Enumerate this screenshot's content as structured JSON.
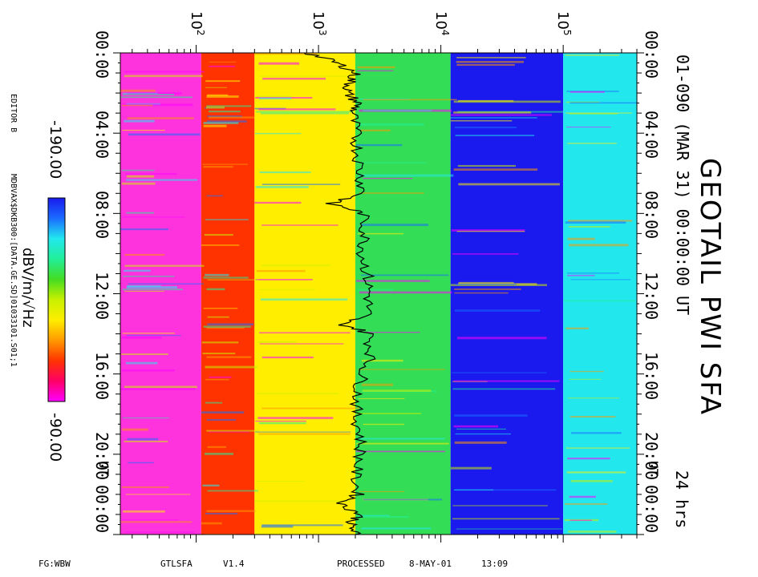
{
  "title": "GEOTAIL PWI SFA",
  "subtitle": "01-090 (MAR 31) 00:00:00 UT",
  "duration": "24 hrs",
  "colorbar": {
    "label": "dBV/m/√Hz",
    "min_label": "-190.00",
    "max_label": "-90.00",
    "colors": [
      "#ff00ff",
      "#ff0066",
      "#ff3300",
      "#ff9900",
      "#ffee00",
      "#c8f000",
      "#44dd22",
      "#22ee99",
      "#22e8ee",
      "#1a6cff",
      "#1a1aee"
    ]
  },
  "side_labels": {
    "editor": "EDITOR B",
    "data_file": "MDBVAX$DKB300:[DATA.GE.SD]01033101.S01;1"
  },
  "footer": {
    "fg": "FG:WBW",
    "program": "GTLSFA",
    "version": "V1.4",
    "processed": "PROCESSED",
    "date": "8-MAY-01",
    "clock": "13:09"
  },
  "chart_data": {
    "type": "heatmap",
    "description_axis_freq": "frequency, log scale",
    "freq_range_hz": [
      24,
      400000
    ],
    "freq_ticks": [
      {
        "base": "10",
        "exp": "2",
        "value": 100
      },
      {
        "base": "10",
        "exp": "3",
        "value": 1000
      },
      {
        "base": "10",
        "exp": "4",
        "value": 10000
      },
      {
        "base": "10",
        "exp": "5",
        "value": 100000
      }
    ],
    "time_range_hours": [
      0,
      24
    ],
    "time_ticks": [
      "00:00",
      "04:00",
      "08:00",
      "12:00",
      "16:00",
      "20:00",
      "00:00"
    ],
    "time_tick_hours": [
      0,
      4,
      8,
      12,
      16,
      20,
      24
    ],
    "ut_marker": "UT",
    "trace_color": "#000000",
    "trace_freq_hz_by_hour": [
      {
        "t": 0.0,
        "f": 800
      },
      {
        "t": 0.5,
        "f": 1400
      },
      {
        "t": 1.0,
        "f": 2000
      },
      {
        "t": 1.5,
        "f": 1800
      },
      {
        "t": 2.0,
        "f": 1700
      },
      {
        "t": 2.5,
        "f": 2100
      },
      {
        "t": 3.0,
        "f": 1900
      },
      {
        "t": 4.0,
        "f": 2000
      },
      {
        "t": 5.0,
        "f": 2100
      },
      {
        "t": 6.0,
        "f": 2200
      },
      {
        "t": 7.0,
        "f": 2300
      },
      {
        "t": 7.5,
        "f": 1200
      },
      {
        "t": 8.0,
        "f": 2300
      },
      {
        "t": 9.0,
        "f": 2400
      },
      {
        "t": 10.0,
        "f": 2300
      },
      {
        "t": 11.0,
        "f": 2500
      },
      {
        "t": 12.0,
        "f": 2600
      },
      {
        "t": 13.0,
        "f": 2500
      },
      {
        "t": 13.5,
        "f": 1500
      },
      {
        "t": 14.0,
        "f": 2600
      },
      {
        "t": 15.0,
        "f": 2700
      },
      {
        "t": 16.0,
        "f": 2300
      },
      {
        "t": 17.0,
        "f": 2100
      },
      {
        "t": 18.0,
        "f": 2000
      },
      {
        "t": 19.0,
        "f": 2200
      },
      {
        "t": 20.0,
        "f": 2200
      },
      {
        "t": 21.0,
        "f": 2000
      },
      {
        "t": 22.0,
        "f": 2100
      },
      {
        "t": 22.5,
        "f": 1500
      },
      {
        "t": 23.0,
        "f": 2200
      },
      {
        "t": 23.5,
        "f": 1800
      },
      {
        "t": 24.0,
        "f": 2000
      }
    ],
    "spectral_bands_freq_hz": [
      {
        "f": [
          24,
          110
        ],
        "color": "#ff33dd"
      },
      {
        "f": [
          110,
          300
        ],
        "color": "#ff3300"
      },
      {
        "f": [
          300,
          2000
        ],
        "color": "#ffee00"
      },
      {
        "f": [
          2000,
          12000
        ],
        "color": "#33dd55"
      },
      {
        "f": [
          12000,
          100000
        ],
        "color": "#1a1aee"
      },
      {
        "f": [
          100000,
          400000
        ],
        "color": "#22e8ee"
      }
    ]
  }
}
